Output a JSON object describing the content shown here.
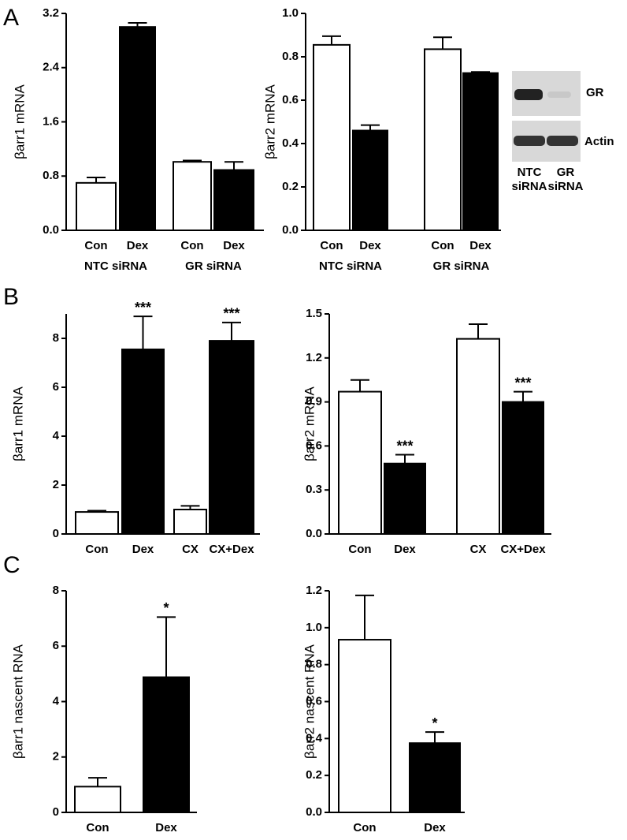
{
  "panel_labels": [
    "A",
    "B",
    "C"
  ],
  "blot": {
    "bands": [
      "GR",
      "Actin"
    ],
    "lanes": [
      [
        "NTC",
        "siRNA"
      ],
      [
        "GR",
        "siRNA"
      ]
    ]
  },
  "chart_data": [
    {
      "type": "bar",
      "ylabel": "βarr1 mRNA",
      "categories": [
        "Con",
        "Dex",
        "Con",
        "Dex"
      ],
      "groups": [
        "NTC siRNA",
        "GR siRNA"
      ],
      "values": [
        0.7,
        3.0,
        1.01,
        0.89
      ],
      "errors": [
        0.08,
        0.06,
        0.02,
        0.12
      ],
      "colors": [
        "#ffffff",
        "#000000",
        "#ffffff",
        "#000000"
      ],
      "ylim": [
        0,
        3.2
      ],
      "yticks": [
        {
          "value": 0,
          "label": "0.0"
        },
        0.8,
        1.6,
        2.4,
        3.2
      ]
    },
    {
      "type": "bar",
      "ylabel": "βarr2 mRNA",
      "categories": [
        "Con",
        "Dex",
        "Con",
        "Dex"
      ],
      "groups": [
        "NTC siRNA",
        "GR siRNA"
      ],
      "values": [
        0.855,
        0.46,
        0.835,
        0.725
      ],
      "errors": [
        0.04,
        0.025,
        0.055,
        0.005
      ],
      "colors": [
        "#ffffff",
        "#000000",
        "#ffffff",
        "#000000"
      ],
      "ylim": [
        0,
        1.0
      ],
      "yticks": [
        {
          "value": 0,
          "label": "0.0"
        },
        0.2,
        0.4,
        0.6,
        0.8,
        {
          "value": 1,
          "label": "1.0"
        }
      ]
    },
    {
      "type": "bar",
      "ylabel": "βarr1 mRNA",
      "categories": [
        "Con",
        "Dex",
        "CX",
        "CX+Dex"
      ],
      "values": [
        0.9,
        7.55,
        1.0,
        7.9
      ],
      "errors": [
        0.05,
        1.35,
        0.15,
        0.75
      ],
      "colors": [
        "#ffffff",
        "#000000",
        "#ffffff",
        "#000000"
      ],
      "ylim": [
        0,
        9
      ],
      "yticks": [
        0,
        2,
        4,
        6,
        8
      ],
      "annotations": [
        {
          "category": "Dex",
          "text": "***"
        },
        {
          "category": "CX+Dex",
          "text": "***"
        }
      ]
    },
    {
      "type": "bar",
      "ylabel": "βarr2 mRNA",
      "categories": [
        "Con",
        "Dex",
        "CX",
        "CX+Dex"
      ],
      "values": [
        0.97,
        0.48,
        1.33,
        0.9
      ],
      "errors": [
        0.08,
        0.06,
        0.1,
        0.07
      ],
      "colors": [
        "#ffffff",
        "#000000",
        "#ffffff",
        "#000000"
      ],
      "ylim": [
        0,
        1.5
      ],
      "yticks": [
        {
          "value": 0,
          "label": "0.0"
        },
        0.3,
        0.6,
        0.9,
        1.2,
        1.5
      ],
      "annotations": [
        {
          "category": "Dex",
          "text": "***"
        },
        {
          "category": "CX+Dex",
          "text": "***"
        }
      ]
    },
    {
      "type": "bar",
      "ylabel": "βarr1 nascent RNA",
      "categories": [
        "Con",
        "Dex"
      ],
      "values": [
        0.93,
        4.88
      ],
      "errors": [
        0.32,
        2.17
      ],
      "colors": [
        "#ffffff",
        "#000000"
      ],
      "ylim": [
        0,
        8
      ],
      "yticks": [
        0,
        2,
        4,
        6,
        8
      ],
      "annotations": [
        {
          "category": "Dex",
          "text": "*"
        }
      ]
    },
    {
      "type": "bar",
      "ylabel": "βarr2 nascent RNA",
      "categories": [
        "Con",
        "Dex"
      ],
      "values": [
        0.935,
        0.375
      ],
      "errors": [
        0.24,
        0.06
      ],
      "colors": [
        "#ffffff",
        "#000000"
      ],
      "ylim": [
        0,
        1.2
      ],
      "yticks": [
        {
          "value": 0,
          "label": "0.0"
        },
        0.2,
        0.4,
        0.6,
        0.8,
        {
          "value": 1,
          "label": "1.0"
        },
        1.2
      ],
      "annotations": [
        {
          "category": "Dex",
          "text": "*"
        }
      ]
    }
  ]
}
